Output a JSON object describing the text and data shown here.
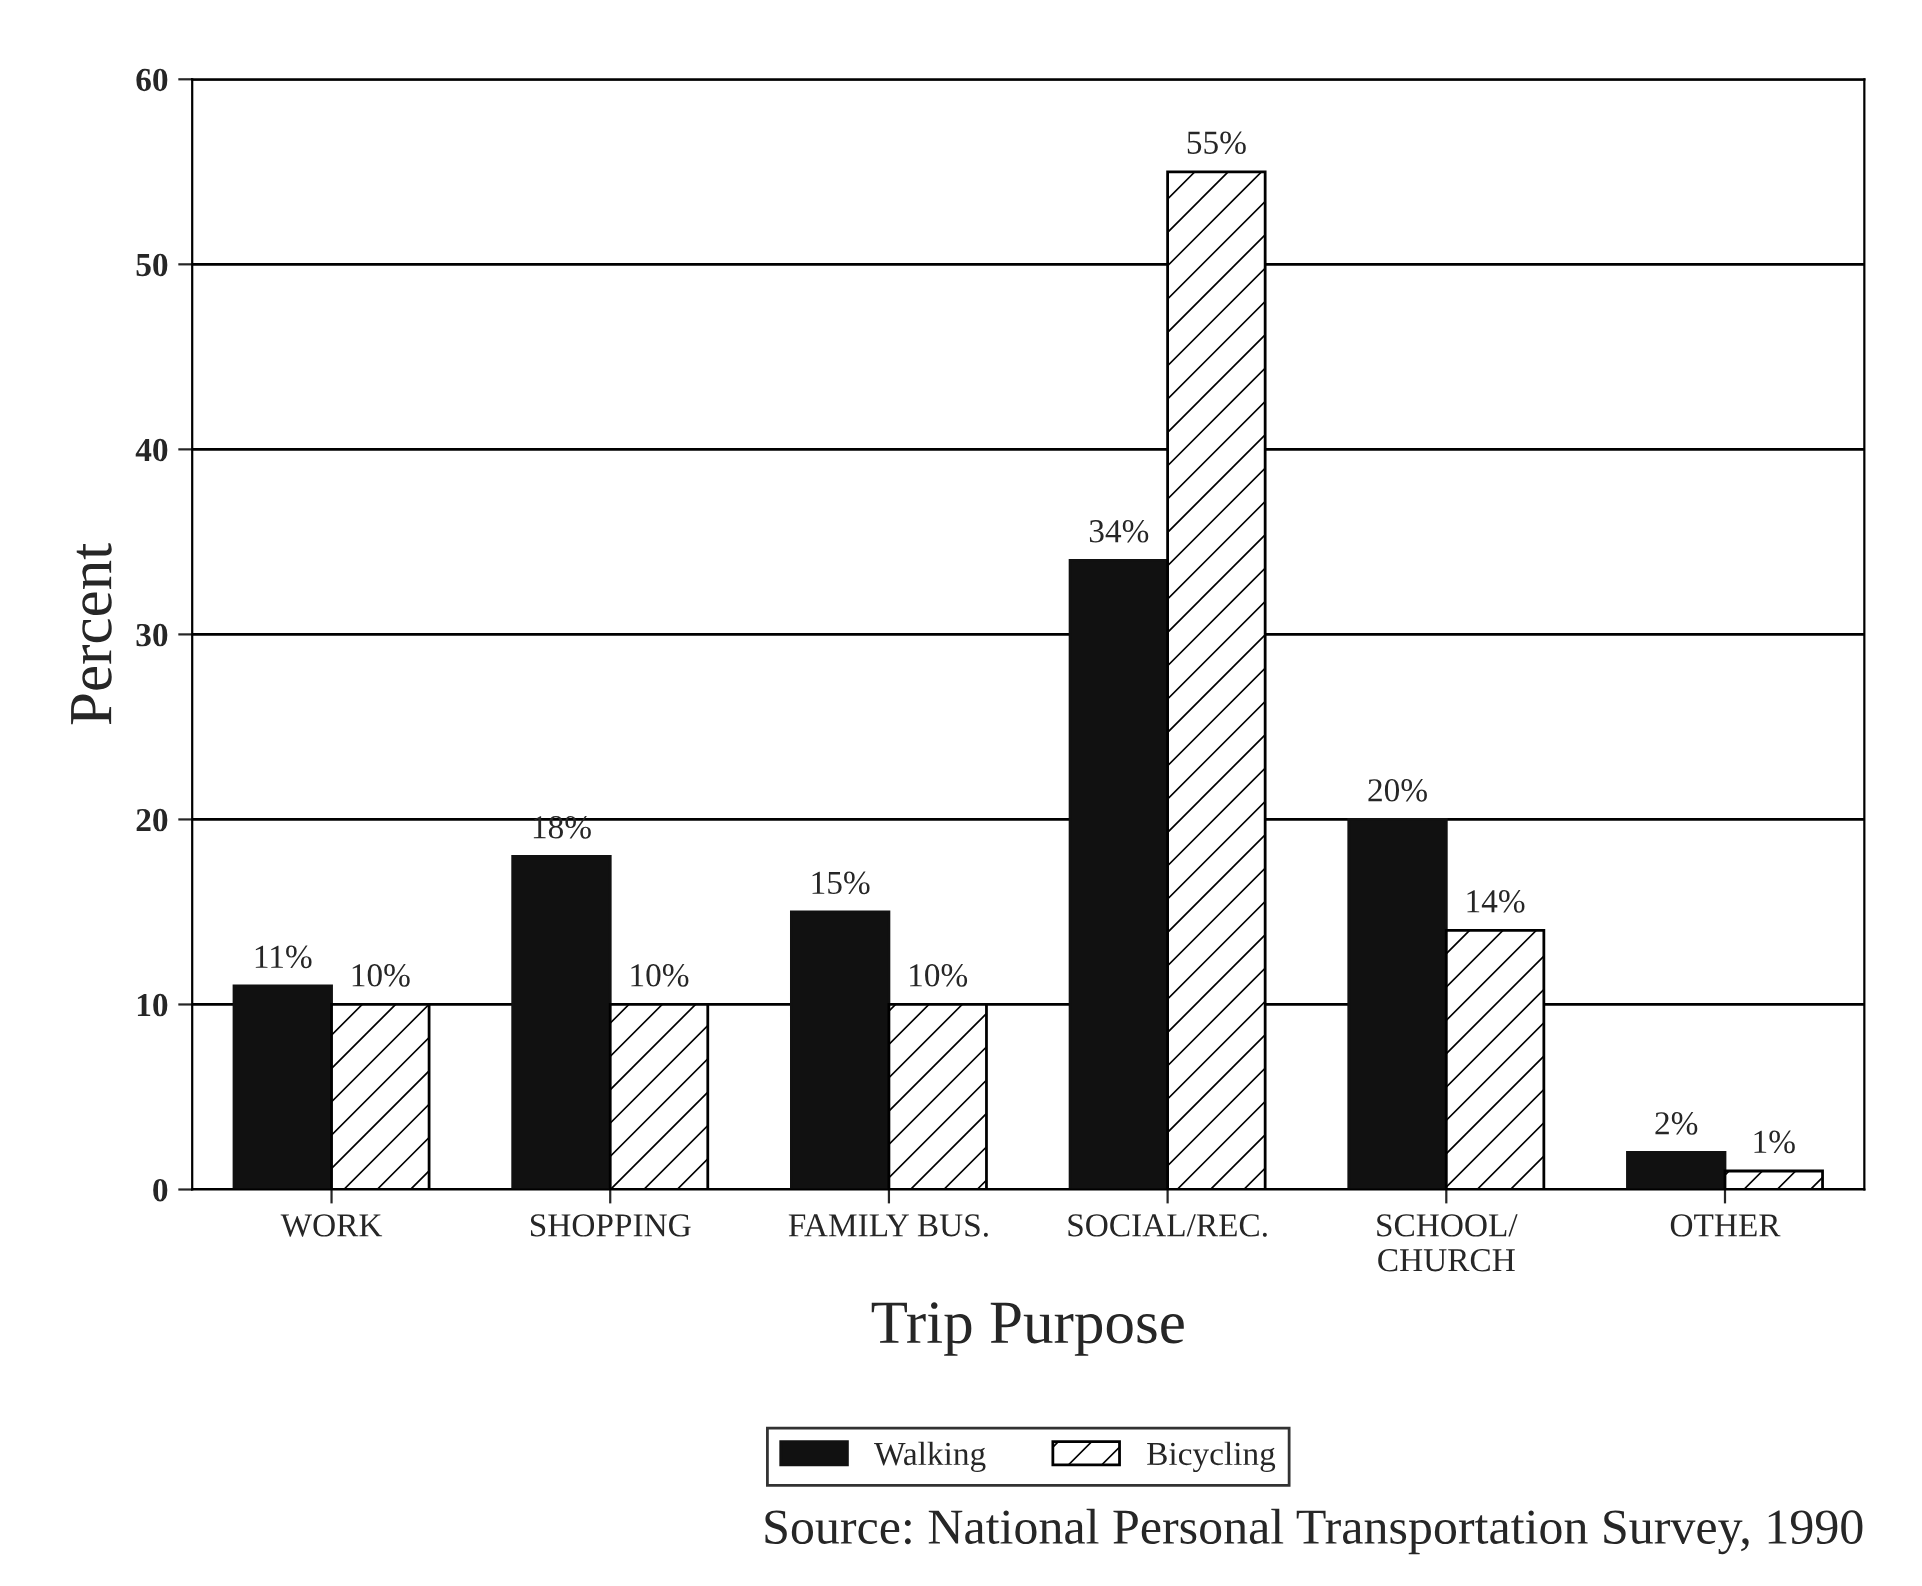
{
  "chart_data": {
    "type": "bar",
    "xlabel": "Trip Purpose",
    "ylabel": "Percent",
    "categories": [
      "WORK",
      "SHOPPING",
      "FAMILY BUS.",
      "SOCIAL/REC.",
      "SCHOOL/\nCHURCH",
      "OTHER"
    ],
    "series": [
      {
        "name": "Walking",
        "color": "#111111",
        "values": [
          11,
          18,
          15,
          34,
          20,
          2
        ],
        "value_labels": [
          "11%",
          "18%",
          "15%",
          "34%",
          "20%",
          "2%"
        ]
      },
      {
        "name": "Bicycling",
        "color": "#000000",
        "values": [
          10,
          10,
          10,
          55,
          14,
          1
        ],
        "value_labels": [
          "10%",
          "10%",
          "10%",
          "55%",
          "14%",
          "1%"
        ]
      }
    ],
    "ylim": [
      0,
      60
    ],
    "yticks": [
      0,
      10,
      20,
      30,
      40,
      50,
      60
    ],
    "grid": "y",
    "legend": "bottom",
    "annotations": [
      "Source: National Personal Transportation Survey, 1990"
    ]
  }
}
